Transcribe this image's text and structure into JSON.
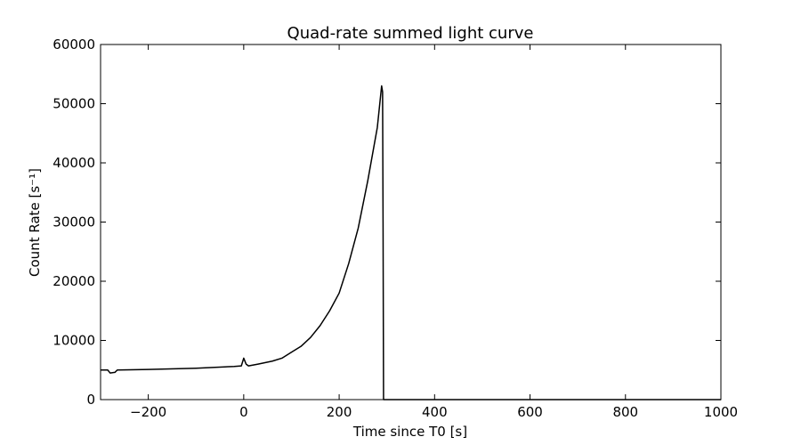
{
  "chart_data": {
    "type": "line",
    "title": "Quad-rate summed light curve",
    "xlabel": "Time since T0 [s]",
    "ylabel": "Count Rate [s⁻¹]",
    "x": [
      -300,
      -285,
      -280,
      -270,
      -265,
      -200,
      -100,
      -20,
      -5,
      0,
      5,
      10,
      30,
      60,
      80,
      100,
      120,
      140,
      160,
      180,
      200,
      220,
      240,
      260,
      280,
      289,
      291,
      292,
      293,
      1000
    ],
    "series": [
      {
        "name": "Quad-rate summed",
        "color": "#000000",
        "values": [
          5000,
          5000,
          4500,
          4600,
          5000,
          5100,
          5300,
          5600,
          5700,
          7000,
          6000,
          5700,
          6000,
          6500,
          7000,
          8000,
          9000,
          10500,
          12500,
          15000,
          18000,
          23000,
          29000,
          37000,
          46000,
          53000,
          52000,
          30000,
          0,
          0
        ]
      }
    ],
    "xlim": [
      -300,
      1000
    ],
    "ylim": [
      0,
      60000
    ],
    "xticks": [
      {
        "value": -200,
        "label": "−200"
      },
      0,
      200,
      400,
      600,
      800,
      1000
    ],
    "yticks": [
      0,
      10000,
      20000,
      30000,
      40000,
      50000,
      60000
    ],
    "grid": false
  }
}
